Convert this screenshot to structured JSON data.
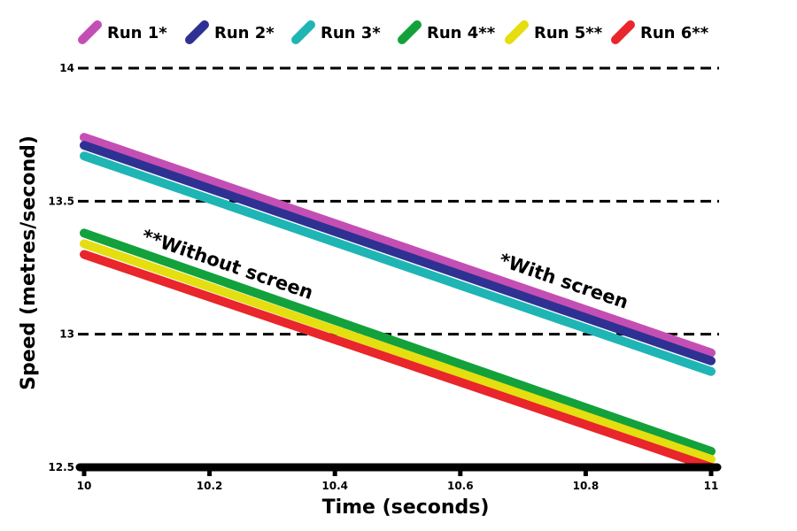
{
  "chart_data": {
    "type": "line",
    "title": "",
    "xlabel": "Time (seconds)",
    "ylabel": "Speed (metres/second)",
    "xlim": [
      10,
      11
    ],
    "ylim": [
      12.5,
      14
    ],
    "x_ticks": [
      "10",
      "10.2",
      "10.4",
      "10.6",
      "10.8",
      "11"
    ],
    "y_ticks": [
      "12.5",
      "13",
      "13.5",
      "14"
    ],
    "grid": "dashed horizontal lines at 13, 13.5, 14",
    "legend_position": "top",
    "series": [
      {
        "name": "Run 1*",
        "color": "#c44fb4",
        "points": [
          [
            10,
            13.74
          ],
          [
            11,
            12.93
          ]
        ]
      },
      {
        "name": "Run 2*",
        "color": "#2e3192",
        "points": [
          [
            10,
            13.71
          ],
          [
            11,
            12.9
          ]
        ]
      },
      {
        "name": "Run 3*",
        "color": "#1fb5b5",
        "points": [
          [
            10,
            13.67
          ],
          [
            11,
            12.86
          ]
        ]
      },
      {
        "name": "Run 4**",
        "color": "#13a13c",
        "points": [
          [
            10,
            13.38
          ],
          [
            11,
            12.56
          ]
        ]
      },
      {
        "name": "Run 5**",
        "color": "#e5de10",
        "points": [
          [
            10,
            13.34
          ],
          [
            11,
            12.53
          ]
        ]
      },
      {
        "name": "Run 6**",
        "color": "#e8262b",
        "points": [
          [
            10,
            13.3
          ],
          [
            11,
            12.5
          ]
        ]
      }
    ],
    "annotations": [
      {
        "text": "*With screen",
        "x": 10.66,
        "y": 13.26
      },
      {
        "text": "**Without screen",
        "x": 10.09,
        "y": 13.35
      }
    ]
  }
}
